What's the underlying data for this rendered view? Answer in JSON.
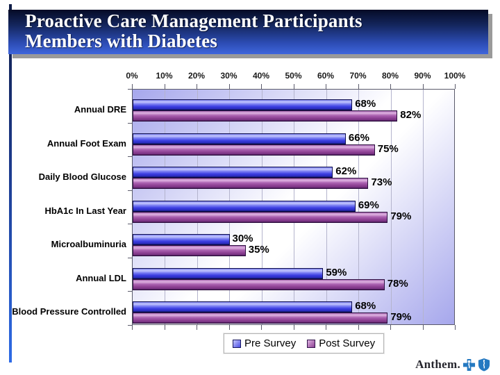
{
  "title": {
    "line1": "Proactive Care Management Participants",
    "line2": "Members with Diabetes"
  },
  "chart_data": {
    "type": "bar",
    "orientation": "horizontal",
    "categories": [
      "Annual DRE",
      "Annual Foot Exam",
      "Daily Blood Glucose",
      "HbA1c In Last Year",
      "Microalbuminuria",
      "Annual LDL",
      "Blood Pressure Controlled"
    ],
    "series": [
      {
        "name": "Pre Survey",
        "color": "#4b4ee4",
        "values": [
          68,
          66,
          62,
          69,
          30,
          59,
          68
        ]
      },
      {
        "name": "Post Survey",
        "color": "#8d4193",
        "values": [
          82,
          75,
          73,
          79,
          35,
          78,
          79
        ]
      }
    ],
    "x_ticks": [
      "0%",
      "10%",
      "20%",
      "30%",
      "40%",
      "50%",
      "60%",
      "70%",
      "80%",
      "90%",
      "100%"
    ],
    "xlim": [
      0,
      100
    ],
    "value_suffix": "%",
    "grid": true,
    "legend_position": "bottom",
    "plot_background": [
      "#a6a7ec",
      "#ffffff",
      "#a6a7ec"
    ]
  },
  "logo": {
    "text": "Anthem.",
    "icon_color": "#2579c1"
  }
}
